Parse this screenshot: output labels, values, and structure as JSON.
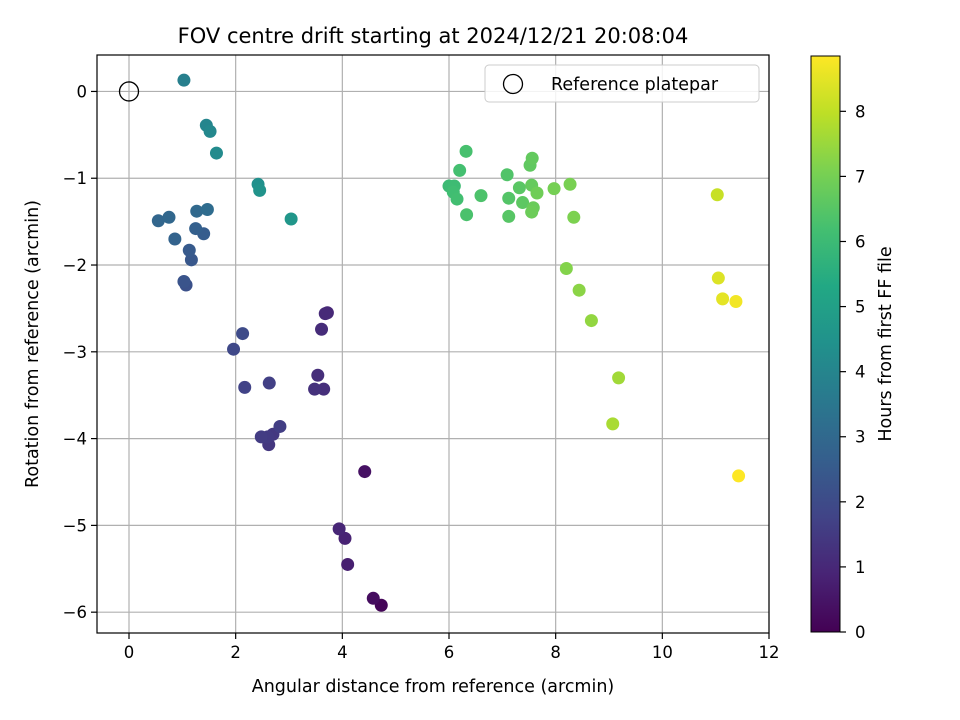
{
  "chart_data": {
    "type": "scatter",
    "title": "FOV centre drift starting at 2024/12/21 20:08:04",
    "xlabel": "Angular distance from reference (arcmin)",
    "ylabel": "Rotation from reference (arcmin)",
    "xlim": [
      -0.6,
      12.0
    ],
    "ylim": [
      -6.24,
      0.42
    ],
    "xticks": [
      "0",
      "2",
      "4",
      "6",
      "8",
      "10",
      "12"
    ],
    "xtick_values": [
      0,
      2,
      4,
      6,
      8,
      10,
      12
    ],
    "yticks": [
      "0",
      "−1",
      "−2",
      "−3",
      "−4",
      "−5",
      "−6"
    ],
    "ytick_values": [
      0,
      -1,
      -2,
      -3,
      -4,
      -5,
      -6
    ],
    "grid": true,
    "colormap": "viridis",
    "colorbar": {
      "label": "Hours from first FF file",
      "range": [
        0,
        8.85
      ],
      "ticks": [
        "0",
        "1",
        "2",
        "3",
        "4",
        "5",
        "6",
        "7",
        "8"
      ],
      "tick_values": [
        0,
        1,
        2,
        3,
        4,
        5,
        6,
        7,
        8
      ]
    },
    "legend": {
      "position": "top-right",
      "label": "Reference platepar"
    },
    "reference_point": {
      "x": 0,
      "y": 0
    },
    "points": [
      {
        "x": 4.73,
        "y": -5.92,
        "h": 0.1
      },
      {
        "x": 4.58,
        "y": -5.84,
        "h": 0.3
      },
      {
        "x": 4.42,
        "y": -4.38,
        "h": 0.4
      },
      {
        "x": 4.1,
        "y": -5.45,
        "h": 0.75
      },
      {
        "x": 4.05,
        "y": -5.15,
        "h": 0.85
      },
      {
        "x": 3.94,
        "y": -5.04,
        "h": 0.95
      },
      {
        "x": 3.72,
        "y": -2.55,
        "h": 1.0
      },
      {
        "x": 3.68,
        "y": -2.56,
        "h": 1.05
      },
      {
        "x": 3.61,
        "y": -2.74,
        "h": 1.1
      },
      {
        "x": 3.54,
        "y": -3.27,
        "h": 1.15
      },
      {
        "x": 3.65,
        "y": -3.43,
        "h": 1.2
      },
      {
        "x": 3.48,
        "y": -3.43,
        "h": 1.25
      },
      {
        "x": 2.62,
        "y": -4.07,
        "h": 1.4
      },
      {
        "x": 2.7,
        "y": -3.95,
        "h": 1.45
      },
      {
        "x": 2.6,
        "y": -3.98,
        "h": 1.5
      },
      {
        "x": 2.48,
        "y": -3.98,
        "h": 1.55
      },
      {
        "x": 2.83,
        "y": -3.86,
        "h": 1.6
      },
      {
        "x": 2.63,
        "y": -3.36,
        "h": 1.65
      },
      {
        "x": 2.17,
        "y": -3.41,
        "h": 1.75
      },
      {
        "x": 1.96,
        "y": -2.97,
        "h": 1.9
      },
      {
        "x": 2.13,
        "y": -2.79,
        "h": 2.0
      },
      {
        "x": 1.07,
        "y": -2.23,
        "h": 2.2
      },
      {
        "x": 1.03,
        "y": -2.19,
        "h": 2.3
      },
      {
        "x": 1.17,
        "y": -1.94,
        "h": 2.4
      },
      {
        "x": 1.13,
        "y": -1.83,
        "h": 2.5
      },
      {
        "x": 1.4,
        "y": -1.64,
        "h": 2.6
      },
      {
        "x": 1.25,
        "y": -1.58,
        "h": 2.7
      },
      {
        "x": 0.86,
        "y": -1.7,
        "h": 2.8
      },
      {
        "x": 0.55,
        "y": -1.49,
        "h": 2.9
      },
      {
        "x": 0.75,
        "y": -1.45,
        "h": 2.95
      },
      {
        "x": 1.27,
        "y": -1.38,
        "h": 3.0
      },
      {
        "x": 1.47,
        "y": -1.36,
        "h": 3.1
      },
      {
        "x": 1.03,
        "y": 0.13,
        "h": 3.8
      },
      {
        "x": 1.45,
        "y": -0.39,
        "h": 4.0
      },
      {
        "x": 1.52,
        "y": -0.46,
        "h": 4.1
      },
      {
        "x": 1.64,
        "y": -0.71,
        "h": 4.2
      },
      {
        "x": 2.42,
        "y": -1.07,
        "h": 4.4
      },
      {
        "x": 2.45,
        "y": -1.14,
        "h": 4.5
      },
      {
        "x": 3.04,
        "y": -1.47,
        "h": 4.6
      },
      {
        "x": 6.0,
        "y": -1.09,
        "h": 6.0
      },
      {
        "x": 6.1,
        "y": -1.09,
        "h": 6.05
      },
      {
        "x": 6.08,
        "y": -1.16,
        "h": 6.1
      },
      {
        "x": 6.15,
        "y": -1.24,
        "h": 6.15
      },
      {
        "x": 6.2,
        "y": -0.91,
        "h": 6.2
      },
      {
        "x": 6.32,
        "y": -0.69,
        "h": 6.25
      },
      {
        "x": 6.33,
        "y": -1.42,
        "h": 6.3
      },
      {
        "x": 6.6,
        "y": -1.2,
        "h": 6.35
      },
      {
        "x": 7.09,
        "y": -0.96,
        "h": 6.4
      },
      {
        "x": 7.12,
        "y": -1.23,
        "h": 6.45
      },
      {
        "x": 7.12,
        "y": -1.44,
        "h": 6.5
      },
      {
        "x": 7.32,
        "y": -1.11,
        "h": 6.55
      },
      {
        "x": 7.38,
        "y": -1.28,
        "h": 6.6
      },
      {
        "x": 7.52,
        "y": -0.85,
        "h": 6.65
      },
      {
        "x": 7.56,
        "y": -0.77,
        "h": 6.7
      },
      {
        "x": 7.55,
        "y": -1.08,
        "h": 6.75
      },
      {
        "x": 7.58,
        "y": -1.34,
        "h": 6.8
      },
      {
        "x": 7.55,
        "y": -1.39,
        "h": 6.85
      },
      {
        "x": 7.65,
        "y": -1.17,
        "h": 6.9
      },
      {
        "x": 7.97,
        "y": -1.12,
        "h": 7.0
      },
      {
        "x": 8.27,
        "y": -1.07,
        "h": 7.05
      },
      {
        "x": 8.34,
        "y": -1.45,
        "h": 7.1
      },
      {
        "x": 8.2,
        "y": -2.04,
        "h": 7.2
      },
      {
        "x": 8.44,
        "y": -2.29,
        "h": 7.3
      },
      {
        "x": 8.67,
        "y": -2.64,
        "h": 7.4
      },
      {
        "x": 9.18,
        "y": -3.3,
        "h": 7.6
      },
      {
        "x": 9.07,
        "y": -3.83,
        "h": 7.7
      },
      {
        "x": 11.03,
        "y": -1.19,
        "h": 8.1
      },
      {
        "x": 11.05,
        "y": -2.15,
        "h": 8.4
      },
      {
        "x": 11.13,
        "y": -2.39,
        "h": 8.5
      },
      {
        "x": 11.38,
        "y": -2.42,
        "h": 8.7
      },
      {
        "x": 11.43,
        "y": -4.43,
        "h": 8.85
      }
    ]
  }
}
